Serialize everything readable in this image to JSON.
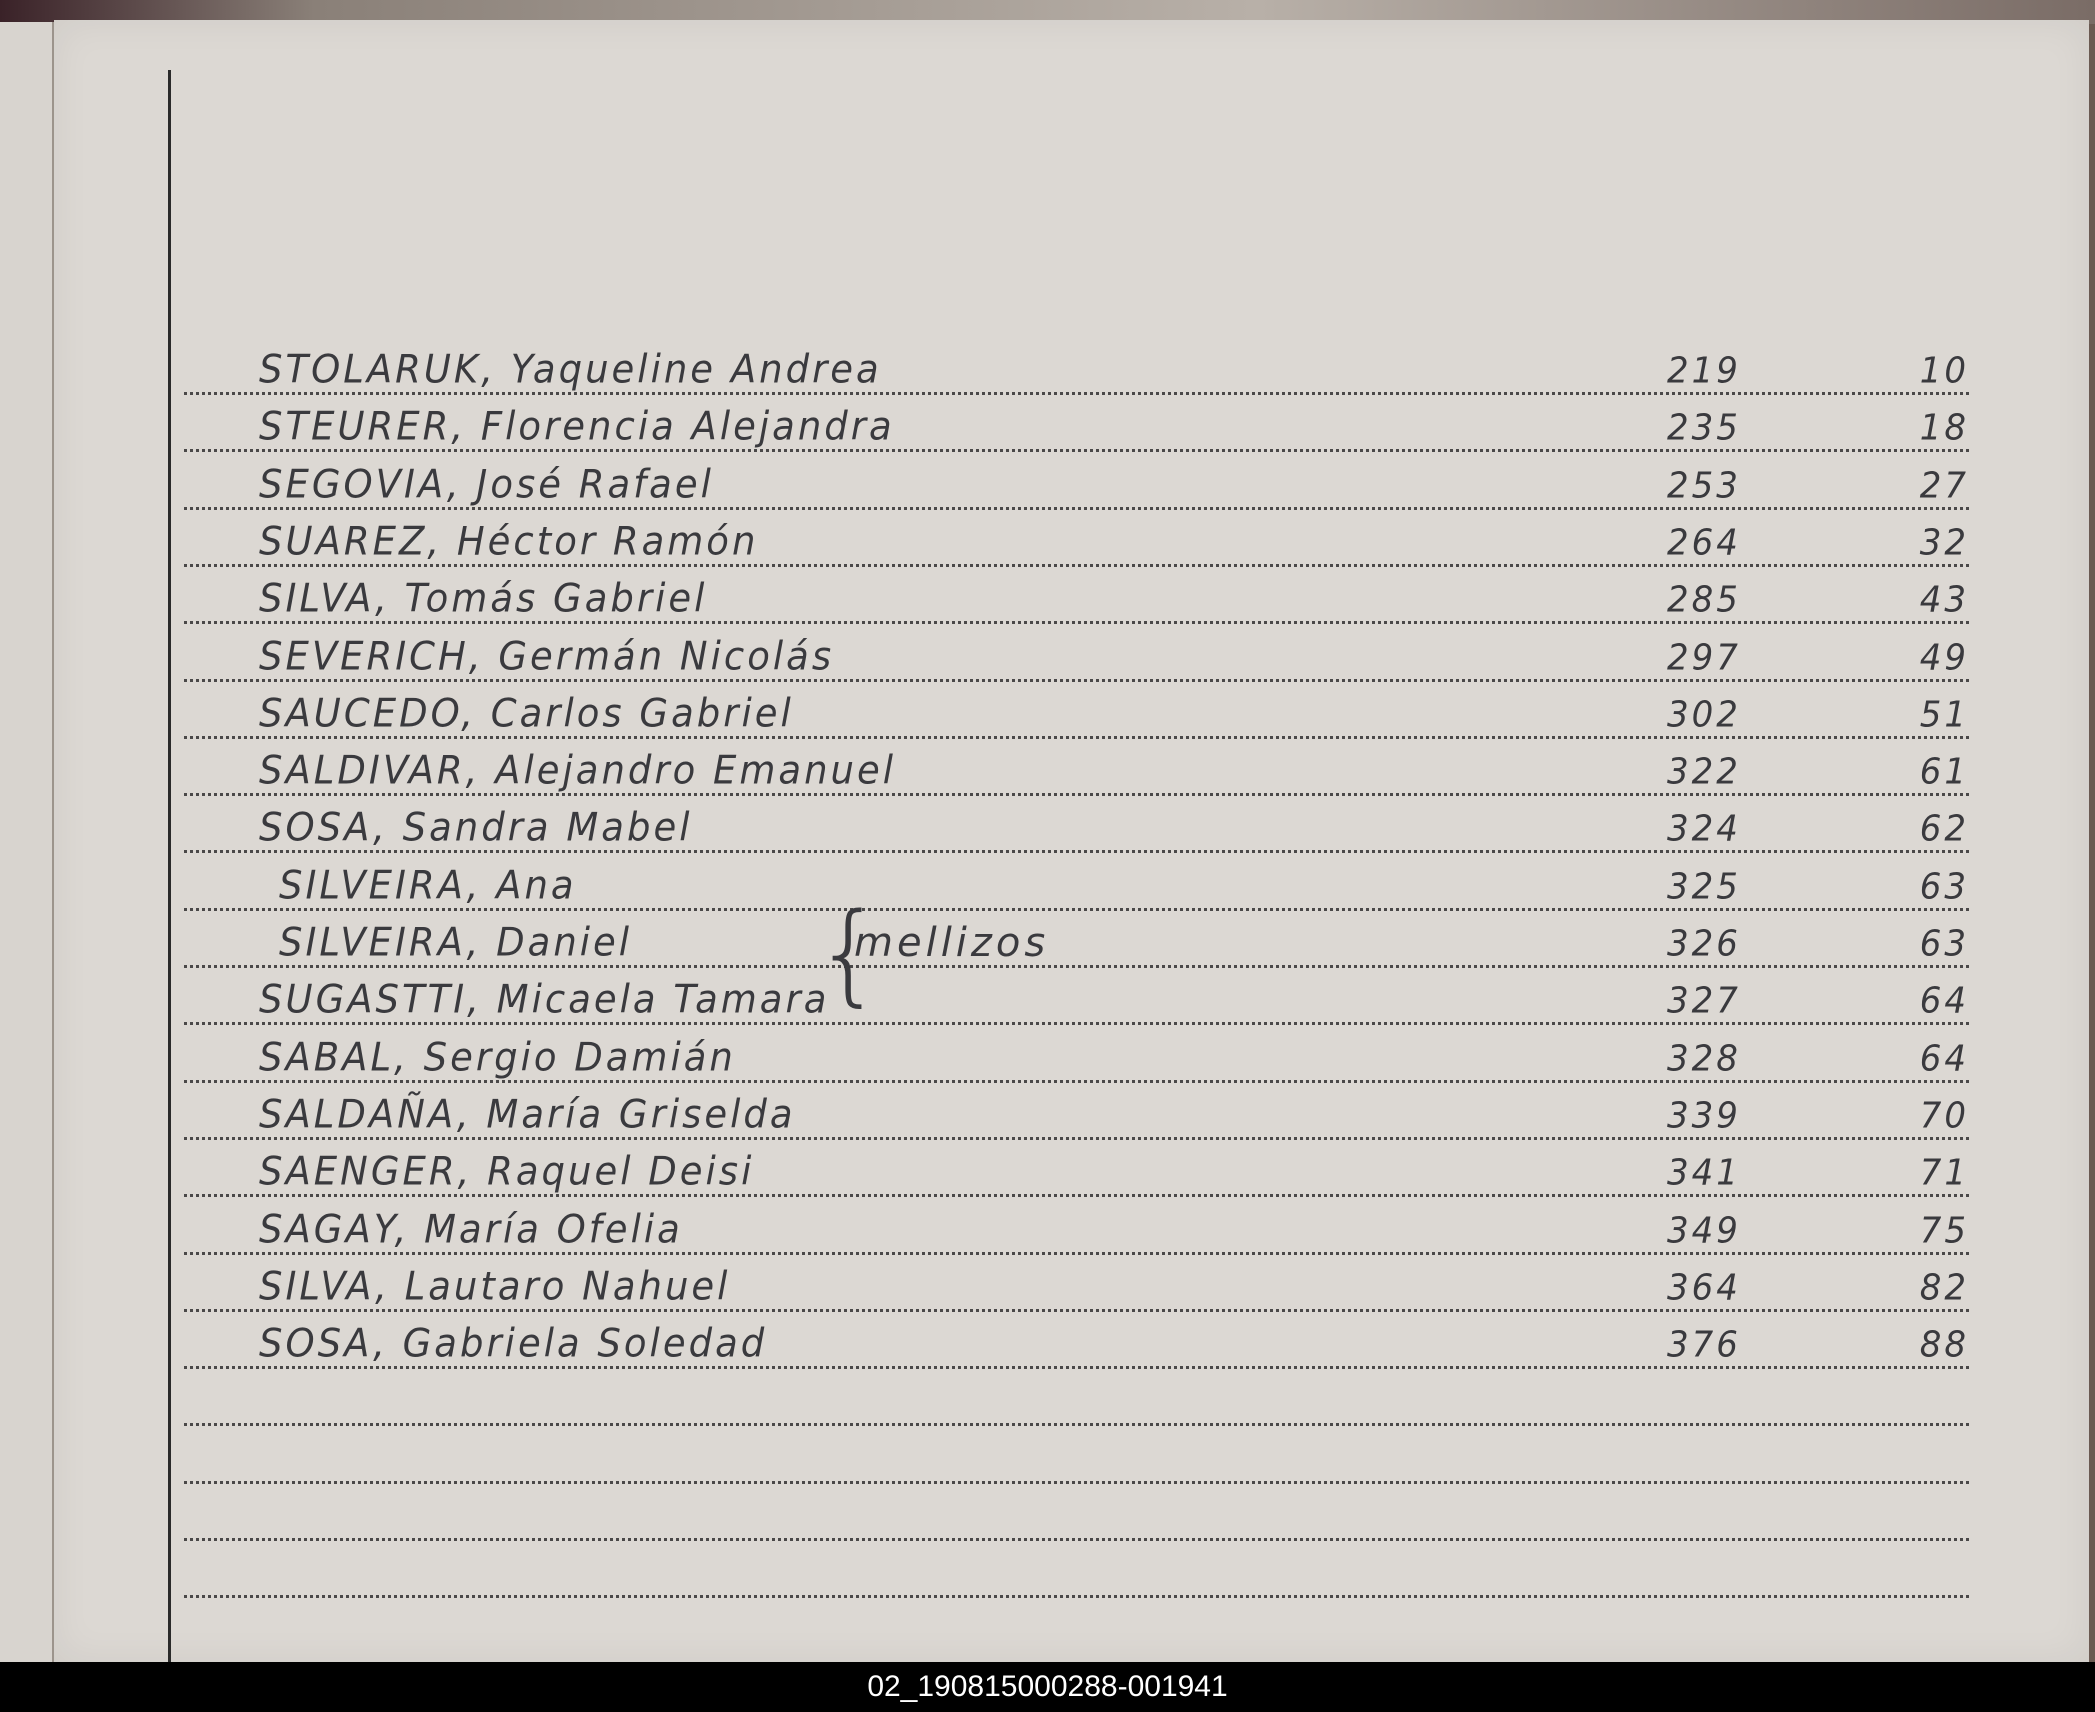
{
  "entries": [
    {
      "name": "STOLARUK, Yaqueline Andrea",
      "num1": "219",
      "num2": "10"
    },
    {
      "name": "STEURER, Florencia Alejandra",
      "num1": "235",
      "num2": "18"
    },
    {
      "name": "SEGOVIA, José Rafael",
      "num1": "253",
      "num2": "27"
    },
    {
      "name": "SUAREZ, Héctor Ramón",
      "num1": "264",
      "num2": "32"
    },
    {
      "name": "SILVA, Tomás Gabriel",
      "num1": "285",
      "num2": "43"
    },
    {
      "name": "SEVERICH, Germán Nicolás",
      "num1": "297",
      "num2": "49"
    },
    {
      "name": "SAUCEDO, Carlos Gabriel",
      "num1": "302",
      "num2": "51"
    },
    {
      "name": "SALDIVAR, Alejandro Emanuel",
      "num1": "322",
      "num2": "61"
    },
    {
      "name": "SOSA, Sandra Mabel",
      "num1": "324",
      "num2": "62"
    },
    {
      "name": "SILVEIRA, Ana",
      "num1": "325",
      "num2": "63"
    },
    {
      "name": "SILVEIRA, Daniel",
      "num1": "326",
      "num2": "63"
    },
    {
      "name": "SUGASTTI, Micaela Tamara",
      "num1": "327",
      "num2": "64"
    },
    {
      "name": "SABAL, Sergio Damián",
      "num1": "328",
      "num2": "64"
    },
    {
      "name": "SALDAÑA, María Griselda",
      "num1": "339",
      "num2": "70"
    },
    {
      "name": "SAENGER, Raquel Deisi",
      "num1": "341",
      "num2": "71"
    },
    {
      "name": "SAGAY, María Ofelia",
      "num1": "349",
      "num2": "75"
    },
    {
      "name": "SILVA, Lautaro Nahuel",
      "num1": "364",
      "num2": "82"
    },
    {
      "name": "SOSA, Gabriela Soledad",
      "num1": "376",
      "num2": "88"
    }
  ],
  "annotation": "mellizos",
  "footer_label": "02_190815000288-001941"
}
